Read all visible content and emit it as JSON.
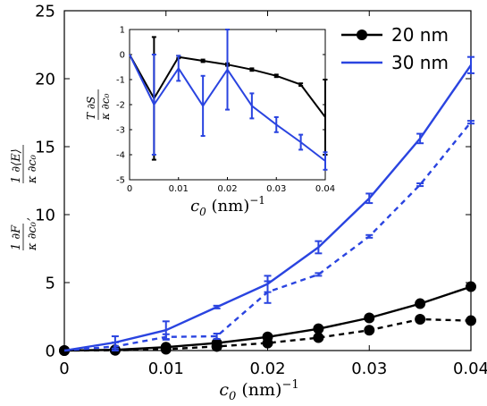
{
  "chart_data": [
    {
      "type": "line",
      "xlabel": "c₀ (nm)⁻¹",
      "ylabel": "1/κ ∂F/∂c₀,  1/κ ∂⟨E⟩/∂c₀",
      "xlim": [
        0,
        0.04
      ],
      "ylim": [
        0,
        25
      ],
      "xticks": [
        0,
        0.01,
        0.02,
        0.03,
        0.04
      ],
      "xtick_labels": [
        "0",
        "0.01",
        "0.02",
        "0.03",
        "0.04"
      ],
      "yticks": [
        0,
        5,
        10,
        15,
        20,
        25
      ],
      "ytick_labels": [
        "0",
        "5",
        "10",
        "15",
        "20",
        "25"
      ],
      "grid": false,
      "legend_position": "top-right",
      "series": [
        {
          "name": "20 nm",
          "color": "#000000",
          "style": "solid",
          "marker": "circle",
          "x": [
            0,
            0.005,
            0.01,
            0.015,
            0.02,
            0.025,
            0.03,
            0.035,
            0.04
          ],
          "y": [
            0.0,
            0.05,
            0.25,
            0.55,
            1.0,
            1.6,
            2.4,
            3.45,
            4.7
          ]
        },
        {
          "name": "",
          "color": "#000000",
          "style": "dashed",
          "marker": "circle",
          "x": [
            0,
            0.005,
            0.01,
            0.015,
            0.02,
            0.025,
            0.03,
            0.035,
            0.04
          ],
          "y": [
            0.0,
            0.02,
            0.1,
            0.3,
            0.55,
            0.95,
            1.5,
            2.3,
            2.2
          ]
        },
        {
          "name": "30 nm",
          "color": "#2a44e0",
          "style": "solid",
          "marker": "none",
          "x": [
            0,
            0.005,
            0.01,
            0.015,
            0.02,
            0.025,
            0.03,
            0.035,
            0.04
          ],
          "y": [
            0.0,
            0.6,
            1.5,
            3.2,
            4.9,
            7.6,
            11.2,
            15.6,
            21.0
          ],
          "err": [
            0,
            0.45,
            0.65,
            0.1,
            0.6,
            0.45,
            0.35,
            0.35,
            0.6
          ]
        },
        {
          "name": "",
          "color": "#2a44e0",
          "style": "dashed",
          "marker": "none",
          "x": [
            0,
            0.005,
            0.01,
            0.015,
            0.02,
            0.025,
            0.03,
            0.035,
            0.04
          ],
          "y": [
            0.0,
            0.3,
            1.0,
            1.05,
            4.3,
            5.6,
            8.4,
            12.2,
            16.8
          ],
          "err": [
            0,
            0.3,
            0.2,
            0.2,
            0.8,
            0.1,
            0.1,
            0.1,
            0.1
          ]
        }
      ]
    },
    {
      "type": "line",
      "inset": true,
      "xlabel": "c₀ (nm)⁻¹",
      "ylabel": "T/κ ∂S/∂c₀",
      "xlim": [
        0,
        0.04
      ],
      "ylim": [
        -5,
        1
      ],
      "xticks": [
        0,
        0.01,
        0.02,
        0.03,
        0.04
      ],
      "xtick_labels": [
        "0",
        "0.01",
        "0.02",
        "0.03",
        "0.04"
      ],
      "yticks": [
        -5,
        -4,
        -3,
        -2,
        -1,
        0,
        1
      ],
      "ytick_labels": [
        "-5",
        "-4",
        "-3",
        "-2",
        "-1",
        "0",
        "1"
      ],
      "grid": false,
      "series": [
        {
          "name": "20 nm",
          "color": "#000000",
          "style": "solid",
          "x": [
            0,
            0.005,
            0.01,
            0.015,
            0.02,
            0.025,
            0.03,
            0.035,
            0.04
          ],
          "y": [
            0.0,
            -1.75,
            -0.1,
            -0.25,
            -0.4,
            -0.6,
            -0.85,
            -1.2,
            -2.5
          ],
          "err": [
            0,
            2.45,
            0.05,
            0.05,
            0.05,
            0.05,
            0.05,
            0.05,
            1.5
          ]
        },
        {
          "name": "30 nm",
          "color": "#2a44e0",
          "style": "solid",
          "x": [
            0,
            0.005,
            0.01,
            0.015,
            0.02,
            0.025,
            0.03,
            0.035,
            0.04
          ],
          "y": [
            0.0,
            -2.0,
            -0.55,
            -2.05,
            -0.6,
            -2.05,
            -2.8,
            -3.5,
            -4.25
          ],
          "err": [
            0,
            2.0,
            0.5,
            1.2,
            1.6,
            0.5,
            0.3,
            0.3,
            0.35
          ]
        }
      ]
    }
  ]
}
